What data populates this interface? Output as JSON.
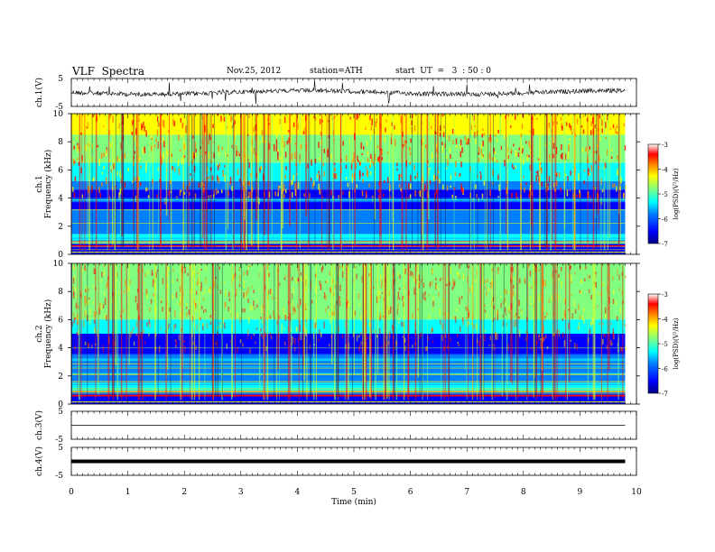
{
  "header": {
    "title": "VLF  Spectra",
    "date": "Nov.25, 2012",
    "station": "station=ATH",
    "start": "start  UT  =   3  : 50 : 0"
  },
  "chart_data": [
    {
      "type": "line",
      "panel": "ch1-waveform",
      "ylabel": "ch.1(V)",
      "yticks": [
        "5",
        "-5"
      ],
      "ylim": [
        -5,
        5
      ],
      "xlim": [
        0,
        10
      ],
      "data_end_min": 9.8,
      "baseline_v": 0.0,
      "spike_amplitude_v": 4.0
    },
    {
      "type": "heatmap",
      "panel": "ch1-spectrogram",
      "ylabel_top": "ch.1",
      "ylabel": "Frequency  (kHz)",
      "yticks": [
        "0",
        "2",
        "4",
        "6",
        "8",
        "10"
      ],
      "ylim": [
        0,
        10
      ],
      "xlim": [
        0,
        10
      ],
      "data_end_min": 9.8,
      "colorbar": {
        "label": "log(PSD)(V²/Hz)",
        "ticks": [
          "-3",
          "-4",
          "-5",
          "-6",
          "-7"
        ],
        "range": [
          -7,
          -3
        ]
      }
    },
    {
      "type": "heatmap",
      "panel": "ch2-spectrogram",
      "ylabel_top": "ch.2",
      "ylabel": "Frequency  (kHz)",
      "yticks": [
        "0",
        "2",
        "4",
        "6",
        "8",
        "10"
      ],
      "ylim": [
        0,
        10
      ],
      "xlim": [
        0,
        10
      ],
      "data_end_min": 9.8,
      "colorbar": {
        "label": "log(PSD)(V²/Hz)",
        "ticks": [
          "-3",
          "-4",
          "-5",
          "-6",
          "-7"
        ],
        "range": [
          -7,
          -3
        ]
      }
    },
    {
      "type": "line",
      "panel": "ch3-waveform",
      "ylabel": "ch.3(V)",
      "yticks": [
        "5",
        "-5"
      ],
      "ylim": [
        -5,
        5
      ],
      "xlim": [
        0,
        10
      ],
      "data_end_min": 9.8,
      "baseline_v": 0.0
    },
    {
      "type": "line",
      "panel": "ch4-waveform",
      "ylabel": "ch.4(V)",
      "yticks": [
        "5",
        "-5"
      ],
      "ylim": [
        -5,
        5
      ],
      "xlim": [
        0,
        10
      ],
      "data_end_min": 9.8,
      "baseline_v": 0.0
    }
  ],
  "x_axis": {
    "label": "Time  (min)",
    "ticks": [
      "0",
      "1",
      "2",
      "3",
      "4",
      "5",
      "6",
      "7",
      "8",
      "9",
      "10"
    ]
  },
  "colors": {
    "jet": [
      "#000080",
      "#0000ff",
      "#0080ff",
      "#00ffff",
      "#80ff80",
      "#ffff00",
      "#ff8000",
      "#ff0000",
      "#ffffff"
    ]
  }
}
